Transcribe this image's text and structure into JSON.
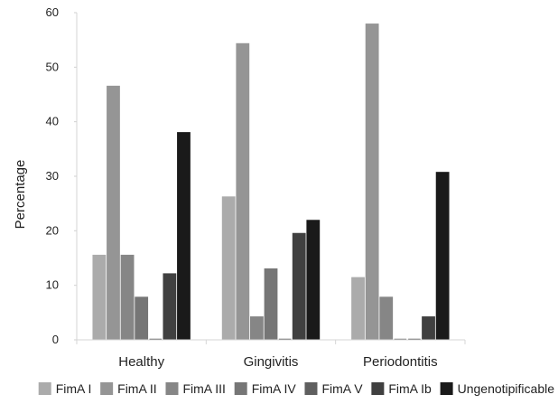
{
  "chart_data": {
    "type": "bar",
    "ylabel": "Percentage",
    "xlabel": "",
    "ylim": [
      0,
      60
    ],
    "yticks": [
      0,
      10,
      20,
      30,
      40,
      50,
      60
    ],
    "categories": [
      "Healthy",
      "Gingivitis",
      "Periodontitis"
    ],
    "legend_position": "bottom",
    "series": [
      {
        "name": "FimA I",
        "color": "#ababab",
        "values": [
          15.6,
          26.3,
          11.5
        ]
      },
      {
        "name": "FimA II",
        "color": "#959595",
        "values": [
          46.6,
          54.4,
          58.0
        ]
      },
      {
        "name": "FimA III",
        "color": "#868686",
        "values": [
          15.6,
          4.3,
          7.9
        ]
      },
      {
        "name": "FimA IV",
        "color": "#767676",
        "values": [
          7.9,
          13.1,
          0
        ]
      },
      {
        "name": "FimA V",
        "color": "#5f5f5f",
        "values": [
          0,
          0,
          0
        ]
      },
      {
        "name": "FimA Ib",
        "color": "#404040",
        "values": [
          12.2,
          19.6,
          4.3
        ]
      },
      {
        "name": "Ungenotipificable",
        "color": "#1a1a1a",
        "values": [
          38.1,
          22.0,
          30.8
        ]
      }
    ]
  }
}
